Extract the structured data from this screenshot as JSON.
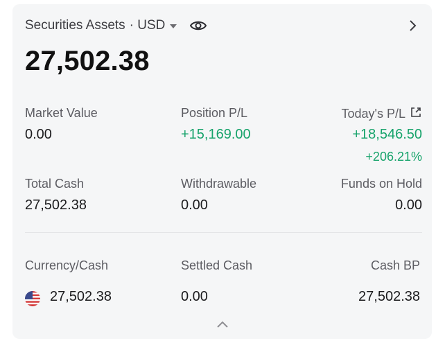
{
  "header": {
    "title": "Securities Assets",
    "currency": "· USD",
    "icons": [
      "caret-down-icon",
      "eye-icon",
      "chevron-right-icon"
    ]
  },
  "total_assets": "27,502.38",
  "metrics": {
    "market_value": {
      "label": "Market Value",
      "value": "0.00"
    },
    "position_pl": {
      "label": "Position P/L",
      "value": "+15,169.00"
    },
    "todays_pl": {
      "label": "Today's P/L",
      "value": "+18,546.50",
      "percent": "+206.21%"
    },
    "total_cash": {
      "label": "Total Cash",
      "value": "27,502.38"
    },
    "withdrawable": {
      "label": "Withdrawable",
      "value": "0.00"
    },
    "funds_on_hold": {
      "label": "Funds on Hold",
      "value": "0.00"
    }
  },
  "cash_table": {
    "headers": {
      "currency": "Currency/Cash",
      "settled": "Settled Cash",
      "bp": "Cash BP"
    },
    "row": {
      "flag": "us-flag-icon",
      "cash": "27,502.38",
      "settled": "0.00",
      "bp": "27,502.38"
    }
  },
  "colors": {
    "positive": "#17a36b",
    "card_bg": "#f5f6f7"
  }
}
